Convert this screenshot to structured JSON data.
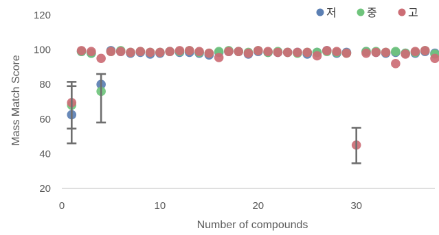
{
  "chart_data": {
    "type": "scatter",
    "title": "",
    "xlabel": "Number of compounds",
    "ylabel": "Mass Match Score",
    "xlim": [
      0,
      38
    ],
    "ylim": [
      20,
      120
    ],
    "x_ticks": [
      "0",
      "10",
      "20",
      "30"
    ],
    "y_ticks": [
      "20",
      "40",
      "60",
      "80",
      "100",
      "120"
    ],
    "x_tick_values": [
      0,
      10,
      20,
      30
    ],
    "y_tick_values": [
      20,
      40,
      60,
      80,
      100,
      120
    ],
    "legend_position": "top-right",
    "series": [
      {
        "name": "저",
        "color": "#5b7fb3",
        "x": [
          1,
          2,
          3,
          4,
          5,
          6,
          7,
          8,
          9,
          10,
          11,
          12,
          13,
          14,
          15,
          16,
          17,
          18,
          19,
          20,
          21,
          22,
          23,
          24,
          25,
          26,
          27,
          28,
          29,
          31,
          32,
          33,
          34,
          35,
          36,
          37,
          38
        ],
        "y": [
          62.5,
          99,
          98,
          80,
          99.5,
          99,
          98,
          98.5,
          97.5,
          98,
          99,
          98.5,
          98.5,
          98,
          97,
          98.5,
          99,
          99,
          97.5,
          99,
          98.5,
          98.5,
          98.5,
          98.5,
          97.5,
          98.5,
          99.5,
          98,
          98.5,
          99,
          98.5,
          98,
          98.5,
          98,
          98,
          99,
          98
        ]
      },
      {
        "name": "중",
        "color": "#6fc47c",
        "x": [
          1,
          2,
          3,
          4,
          5,
          6,
          7,
          8,
          9,
          10,
          11,
          12,
          13,
          14,
          15,
          16,
          17,
          18,
          19,
          20,
          21,
          22,
          23,
          24,
          25,
          26,
          27,
          28,
          29,
          31,
          32,
          33,
          34,
          35,
          36,
          37,
          38
        ],
        "y": [
          68,
          99,
          98,
          76,
          99,
          99.5,
          98.5,
          99,
          98.5,
          98.5,
          99,
          99,
          99.5,
          98.5,
          98,
          99,
          99.5,
          99,
          98.5,
          99.5,
          98.5,
          99,
          98.5,
          98,
          98.5,
          98.5,
          99,
          98.5,
          98,
          99,
          99,
          98.5,
          99,
          98,
          98.5,
          99.5,
          97.5
        ]
      },
      {
        "name": "고",
        "color": "#cc6d75",
        "x": [
          1,
          2,
          3,
          4,
          5,
          6,
          7,
          8,
          9,
          10,
          11,
          12,
          13,
          14,
          15,
          16,
          17,
          18,
          19,
          20,
          21,
          22,
          23,
          24,
          25,
          26,
          27,
          28,
          29,
          30,
          31,
          32,
          33,
          34,
          35,
          36,
          37,
          38
        ],
        "y": [
          69.5,
          99.5,
          99,
          95,
          99,
          99,
          98.5,
          99,
          98.5,
          98.5,
          99,
          99.5,
          99.5,
          99,
          98,
          95.5,
          99,
          99,
          98,
          99.5,
          99,
          98.5,
          98.5,
          98.5,
          98.5,
          96.5,
          99.5,
          99,
          98,
          45,
          98,
          98.5,
          98.5,
          92,
          97.5,
          99,
          99.5,
          95
        ]
      }
    ],
    "error_bars": [
      {
        "x": 1,
        "low": 46,
        "high": 81.5
      },
      {
        "x": 1,
        "low": 54.5,
        "high": 79
      },
      {
        "x": 4,
        "low": 58,
        "high": 86
      },
      {
        "x": 30,
        "low": 34.5,
        "high": 55
      }
    ]
  }
}
